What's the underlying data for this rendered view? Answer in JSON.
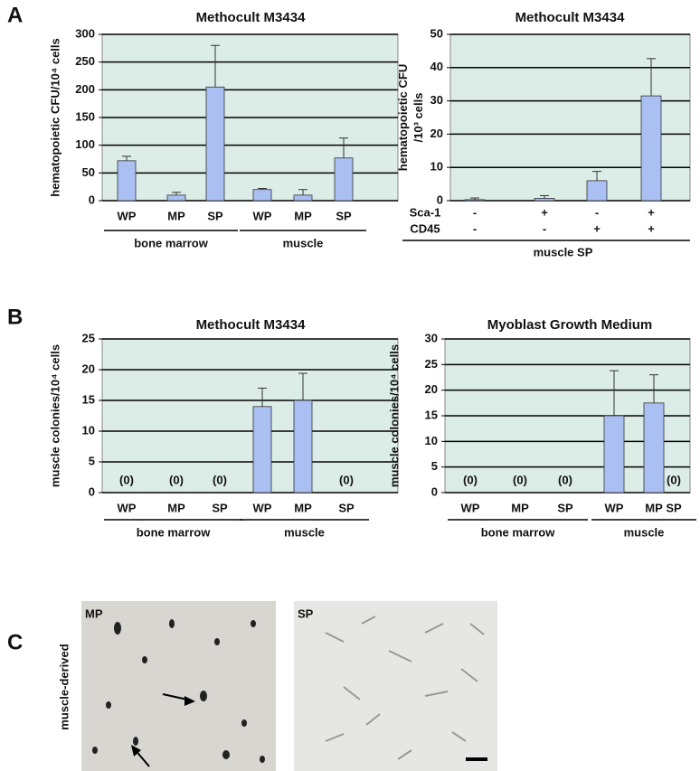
{
  "panel_labels": [
    "A",
    "B",
    "C"
  ],
  "chart_data": [
    {
      "type": "bar",
      "title": "Methocult M3434",
      "ylabel": [
        "hematopoietic CFU/10⁴ cells"
      ],
      "groups": [
        {
          "name": "bone marrow",
          "categories": [
            "WP",
            "MP",
            "SP"
          ]
        },
        {
          "name": "muscle",
          "categories": [
            "WP",
            "MP",
            "SP"
          ]
        }
      ],
      "values": [
        72,
        10,
        205,
        20,
        10,
        77
      ],
      "errors": [
        8,
        5,
        75,
        2,
        10,
        36
      ],
      "ylim": [
        0,
        300
      ],
      "yticks": [
        0,
        50,
        100,
        150,
        200,
        250,
        300
      ],
      "color": "#aabff2",
      "background": "#dcede7",
      "grid": true
    },
    {
      "type": "bar",
      "title": "Methocult M3434",
      "ylabel": [
        "hematopoietic CFU",
        "/10³ cells"
      ],
      "rows": [
        {
          "name": "Sca-1",
          "values": [
            "-",
            "+",
            "-",
            "+"
          ]
        },
        {
          "name": "CD45",
          "values": [
            "-",
            "-",
            "+",
            "+"
          ]
        }
      ],
      "group": "muscle SP",
      "values": [
        0.3,
        0.7,
        6,
        31.5
      ],
      "errors": [
        0.5,
        0.8,
        2.8,
        11.2
      ],
      "ylim": [
        0,
        50
      ],
      "yticks": [
        0,
        10,
        20,
        30,
        40,
        50
      ],
      "color": "#aabff2",
      "background": "#dcede7",
      "grid": true
    },
    {
      "type": "bar",
      "title": "Methocult M3434",
      "ylabel": [
        "muscle colonies/10⁴ cells"
      ],
      "groups": [
        {
          "name": "bone marrow",
          "categories": [
            "WP",
            "MP",
            "SP"
          ]
        },
        {
          "name": "muscle",
          "categories": [
            "WP",
            "MP",
            "SP"
          ]
        }
      ],
      "values": [
        0,
        0,
        0,
        14,
        15,
        0
      ],
      "value_labels": [
        "(0)",
        "(0)",
        "(0)",
        null,
        null,
        "(0)"
      ],
      "errors": [
        null,
        null,
        null,
        3,
        4.4,
        null
      ],
      "ylim": [
        0,
        25
      ],
      "yticks": [
        0,
        5,
        10,
        15,
        20,
        25
      ],
      "color": "#aabff2",
      "background": "#dcede7",
      "grid": true
    },
    {
      "type": "bar",
      "title": "Myoblast Growth Medium",
      "ylabel": [
        "muscle colonies/10⁴ cells"
      ],
      "groups": [
        {
          "name": "bone marrow",
          "categories": [
            "WP",
            "MP",
            "SP"
          ]
        },
        {
          "name": "muscle",
          "categories": [
            "WP",
            "MP",
            "SP"
          ]
        }
      ],
      "values": [
        0,
        0,
        0,
        15,
        17.5,
        0
      ],
      "value_labels": [
        "(0)",
        "(0)",
        "(0)",
        null,
        null,
        "(0)"
      ],
      "errors": [
        null,
        null,
        null,
        8.8,
        5.5,
        null
      ],
      "ylim": [
        0,
        30
      ],
      "yticks": [
        0,
        5,
        10,
        15,
        20,
        25,
        30
      ],
      "color": "#aabff2",
      "background": "#dcede7",
      "grid": true
    }
  ],
  "images": {
    "ylabel": "muscle-derived",
    "labels": [
      "MP",
      "SP"
    ]
  }
}
